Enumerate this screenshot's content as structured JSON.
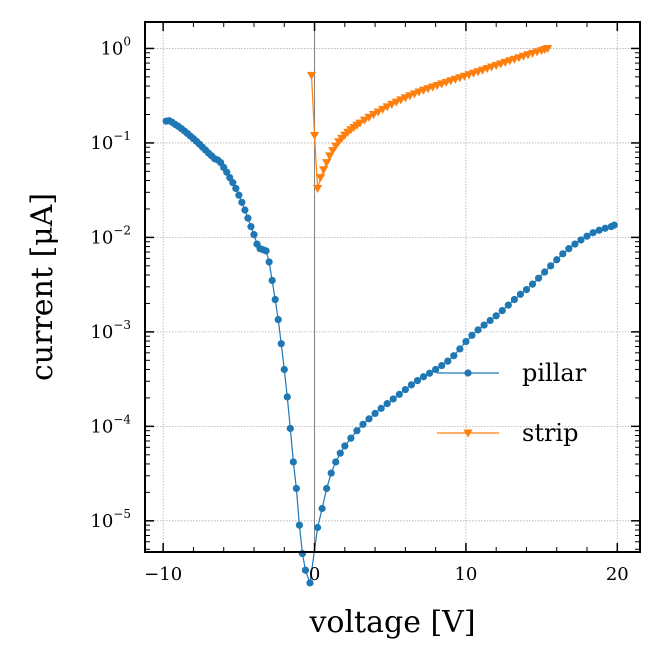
{
  "chart_data": {
    "type": "line",
    "title": "",
    "xlabel": "voltage [V]",
    "ylabel": "current [μA]",
    "xlim": [
      -11.2,
      21.5
    ],
    "ylim_log10": [
      -5.33,
      0.28
    ],
    "y_scale": "log",
    "grid": true,
    "legend_position": "center-right",
    "x_ticks": [
      -10,
      0,
      10,
      20
    ],
    "x_tick_labels": [
      "−10",
      "0",
      "10",
      "20"
    ],
    "y_ticks_log10": [
      0,
      -1,
      -2,
      -3,
      -4,
      -5
    ],
    "y_tick_base": "10",
    "y_tick_exponents": [
      "0",
      "−1",
      "−2",
      "−3",
      "−4",
      "−5"
    ],
    "vline_x": 0,
    "series": [
      {
        "name": "pillar",
        "color": "#1f77b4",
        "marker": "circle",
        "x": [
          -9.8,
          -9.6,
          -9.4,
          -9.2,
          -9.0,
          -8.8,
          -8.6,
          -8.4,
          -8.2,
          -8.0,
          -7.8,
          -7.6,
          -7.4,
          -7.2,
          -7.0,
          -6.8,
          -6.6,
          -6.4,
          -6.2,
          -6.0,
          -5.8,
          -5.6,
          -5.4,
          -5.2,
          -5.0,
          -4.8,
          -4.6,
          -4.4,
          -4.2,
          -4.0,
          -3.8,
          -3.6,
          -3.4,
          -3.2,
          -3.0,
          -2.8,
          -2.6,
          -2.4,
          -2.2,
          -2.0,
          -1.8,
          -1.6,
          -1.4,
          -1.2,
          -1.0,
          -0.8,
          -0.6,
          -0.3,
          0.2,
          0.5,
          0.8,
          1.1,
          1.4,
          1.7,
          2.0,
          2.4,
          2.8,
          3.2,
          3.6,
          4.0,
          4.4,
          4.8,
          5.2,
          5.6,
          6.0,
          6.4,
          6.8,
          7.2,
          7.6,
          8.0,
          8.4,
          8.8,
          9.2,
          9.6,
          10.0,
          10.4,
          10.8,
          11.2,
          11.6,
          12.0,
          12.4,
          12.8,
          13.2,
          13.6,
          14.0,
          14.4,
          14.8,
          15.2,
          15.6,
          16.0,
          16.4,
          16.8,
          17.2,
          17.6,
          18.0,
          18.4,
          18.8,
          19.2,
          19.6,
          19.8
        ],
        "y": [
          0.17,
          0.172,
          0.165,
          0.157,
          0.15,
          0.142,
          0.134,
          0.126,
          0.118,
          0.111,
          0.104,
          0.097,
          0.09,
          0.084,
          0.078,
          0.073,
          0.068,
          0.066,
          0.062,
          0.055,
          0.049,
          0.043,
          0.038,
          0.033,
          0.028,
          0.0235,
          0.0195,
          0.016,
          0.013,
          0.0107,
          0.0085,
          0.0076,
          0.0074,
          0.0072,
          0.0055,
          0.0035,
          0.0022,
          0.00135,
          0.00075,
          0.0004,
          0.000205,
          9.5e-05,
          4.2e-05,
          2.2e-05,
          9e-06,
          4.5e-06,
          3e-06,
          2.2e-06,
          8.5e-06,
          1.35e-05,
          2.2e-05,
          3.2e-05,
          4.2e-05,
          5.2e-05,
          6.2e-05,
          7.5e-05,
          9e-05,
          0.000105,
          0.00012,
          0.000137,
          0.000155,
          0.000174,
          0.000195,
          0.000218,
          0.000245,
          0.000275,
          0.000305,
          0.000335,
          0.000365,
          0.0004,
          0.00044,
          0.00049,
          0.00056,
          0.00066,
          0.00079,
          0.00092,
          0.00105,
          0.00118,
          0.00132,
          0.00148,
          0.00168,
          0.00192,
          0.0022,
          0.0025,
          0.0028,
          0.0032,
          0.0037,
          0.0043,
          0.005,
          0.0058,
          0.0067,
          0.0076,
          0.0085,
          0.0094,
          0.0103,
          0.0112,
          0.0119,
          0.0125,
          0.013,
          0.0135
        ]
      },
      {
        "name": "strip",
        "color": "#ff7f0e",
        "marker": "triangle-down",
        "x": [
          -0.2,
          0.0,
          0.2,
          0.4,
          0.6,
          0.8,
          1.0,
          1.2,
          1.4,
          1.6,
          1.8,
          2.0,
          2.2,
          2.4,
          2.6,
          2.8,
          3.0,
          3.3,
          3.6,
          3.9,
          4.2,
          4.5,
          4.8,
          5.1,
          5.4,
          5.7,
          6.0,
          6.3,
          6.6,
          6.9,
          7.2,
          7.5,
          7.8,
          8.1,
          8.4,
          8.7,
          9.0,
          9.3,
          9.6,
          9.9,
          10.2,
          10.5,
          10.8,
          11.1,
          11.4,
          11.7,
          12.0,
          12.3,
          12.6,
          12.9,
          13.2,
          13.5,
          13.8,
          14.1,
          14.4,
          14.7,
          15.0,
          15.2,
          15.4
        ],
        "y": [
          0.52,
          0.12,
          0.033,
          0.043,
          0.052,
          0.062,
          0.073,
          0.083,
          0.093,
          0.103,
          0.112,
          0.121,
          0.13,
          0.138,
          0.146,
          0.154,
          0.162,
          0.174,
          0.187,
          0.2,
          0.213,
          0.227,
          0.241,
          0.256,
          0.271,
          0.286,
          0.301,
          0.316,
          0.331,
          0.346,
          0.361,
          0.376,
          0.391,
          0.406,
          0.422,
          0.438,
          0.455,
          0.472,
          0.49,
          0.508,
          0.527,
          0.547,
          0.568,
          0.59,
          0.613,
          0.637,
          0.662,
          0.688,
          0.714,
          0.741,
          0.769,
          0.798,
          0.828,
          0.858,
          0.889,
          0.92,
          0.95,
          0.975,
          1.0
        ]
      }
    ]
  }
}
